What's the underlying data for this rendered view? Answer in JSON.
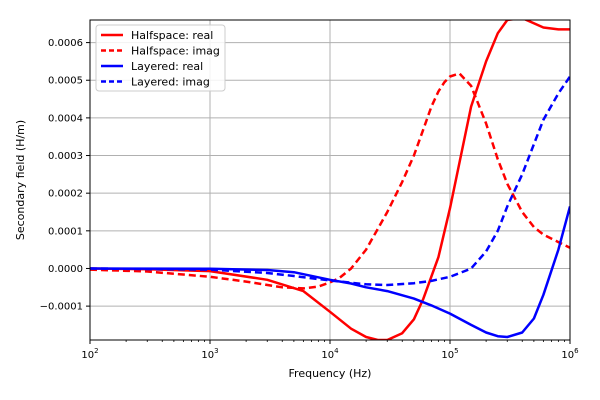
{
  "chart_data": {
    "type": "line",
    "title": "",
    "xlabel": "Frequency (Hz)",
    "ylabel": "Secondary field (H/m)",
    "xscale": "log",
    "xlim": [
      100,
      1000000
    ],
    "ylim": [
      -0.00019,
      0.00066
    ],
    "grid": true,
    "legend_position": "top-left",
    "x_ticks": [
      {
        "value": 100,
        "base": "10",
        "exp": "2"
      },
      {
        "value": 1000,
        "base": "10",
        "exp": "3"
      },
      {
        "value": 10000,
        "base": "10",
        "exp": "4"
      },
      {
        "value": 100000,
        "base": "10",
        "exp": "5"
      },
      {
        "value": 1000000,
        "base": "10",
        "exp": "6"
      }
    ],
    "y_ticks": [
      {
        "value": -0.0001,
        "label": "−0.0001"
      },
      {
        "value": 0.0,
        "label": "0.0000"
      },
      {
        "value": 0.0001,
        "label": "0.0001"
      },
      {
        "value": 0.0002,
        "label": "0.0002"
      },
      {
        "value": 0.0003,
        "label": "0.0003"
      },
      {
        "value": 0.0004,
        "label": "0.0004"
      },
      {
        "value": 0.0005,
        "label": "0.0005"
      },
      {
        "value": 0.0006,
        "label": "0.0006"
      }
    ],
    "series": [
      {
        "name": "Halfspace: real",
        "color": "#ff0000",
        "dash": "solid",
        "x": [
          100,
          300,
          1000,
          3000,
          6000,
          10000,
          15000,
          20000,
          25000,
          30000,
          40000,
          50000,
          60000,
          80000,
          100000,
          150000,
          200000,
          250000,
          300000,
          400000,
          600000,
          800000,
          1000000
        ],
        "y": [
          0.0,
          -2e-06,
          -7e-06,
          -3e-05,
          -6e-05,
          -0.000115,
          -0.00016,
          -0.000182,
          -0.00019,
          -0.00019,
          -0.000172,
          -0.000135,
          -8e-05,
          3e-05,
          0.00016,
          0.00043,
          0.00055,
          0.000625,
          0.00066,
          0.000665,
          0.00064,
          0.000635,
          0.000635
        ]
      },
      {
        "name": "Halfspace: imag",
        "color": "#ff0000",
        "dash": "dashed",
        "x": [
          100,
          300,
          1000,
          2000,
          4000,
          6000,
          8000,
          10000,
          12000,
          15000,
          20000,
          30000,
          40000,
          50000,
          60000,
          70000,
          80000,
          90000,
          100000,
          120000,
          150000,
          200000,
          250000,
          300000,
          400000,
          500000,
          600000,
          800000,
          1000000
        ],
        "y": [
          -3e-06,
          -8e-06,
          -2.2e-05,
          -3.5e-05,
          -5e-05,
          -5.3e-05,
          -4.8e-05,
          -3.7e-05,
          -2.5e-05,
          0.0,
          5e-05,
          0.00015,
          0.00023,
          0.0003,
          0.00037,
          0.00043,
          0.00047,
          0.000495,
          0.00051,
          0.000518,
          0.000485,
          0.000385,
          0.00029,
          0.000225,
          0.00015,
          0.00011,
          9e-05,
          7e-05,
          5.5e-05
        ]
      },
      {
        "name": "Layered: real",
        "color": "#0000ff",
        "dash": "solid",
        "x": [
          100,
          1000,
          3000,
          5000,
          10000,
          15000,
          20000,
          30000,
          50000,
          70000,
          100000,
          150000,
          200000,
          250000,
          300000,
          400000,
          500000,
          600000,
          800000,
          1000000
        ],
        "y": [
          0.0,
          -1e-06,
          -4e-06,
          -1e-05,
          -3e-05,
          -4e-05,
          -5e-05,
          -6e-05,
          -8e-05,
          -9.8e-05,
          -0.00012,
          -0.00015,
          -0.00017,
          -0.00018,
          -0.000182,
          -0.00017,
          -0.000133,
          -7e-05,
          5e-05,
          0.000165
        ]
      },
      {
        "name": "Layered: imag",
        "color": "#0000ff",
        "dash": "dashed",
        "x": [
          100,
          1000,
          3000,
          5000,
          10000,
          20000,
          30000,
          50000,
          70000,
          100000,
          130000,
          150000,
          200000,
          250000,
          300000,
          400000,
          500000,
          600000,
          800000,
          1000000
        ],
        "y": [
          0.0,
          -3e-06,
          -1.2e-05,
          -2e-05,
          -3.2e-05,
          -4.2e-05,
          -4.4e-05,
          -3.9e-05,
          -3.3e-05,
          -2.2e-05,
          -8e-06,
          0.0,
          4.5e-05,
          0.0001,
          0.000165,
          0.00025,
          0.00033,
          0.000395,
          0.000465,
          0.00051
        ]
      }
    ]
  }
}
